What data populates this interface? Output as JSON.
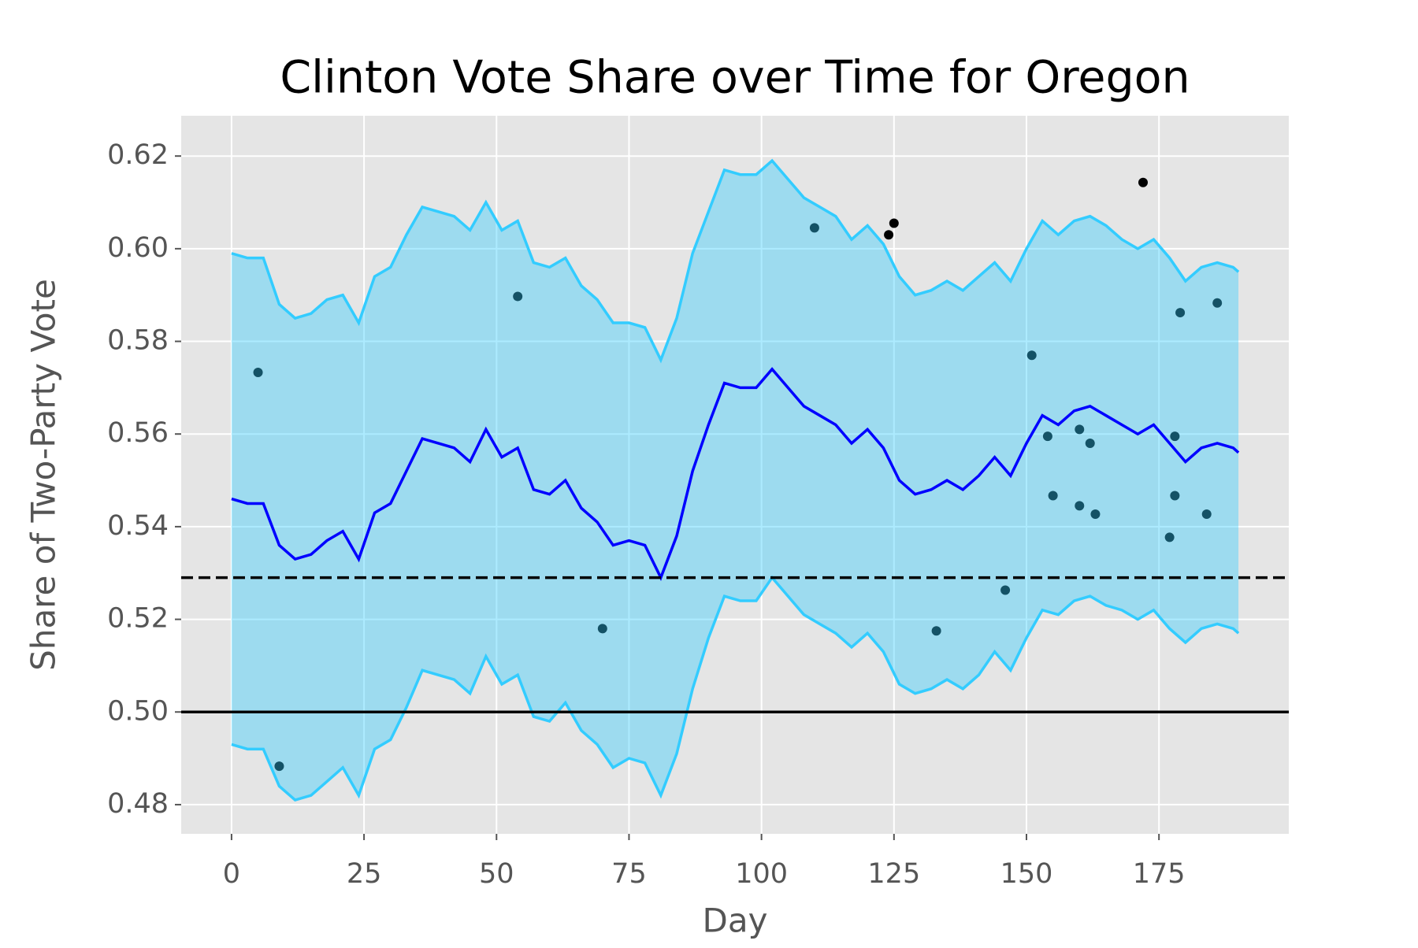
{
  "chart_data": {
    "type": "line-band",
    "title": "Clinton Vote Share over Time for Oregon",
    "x_label": "Day",
    "y_label": "Share of Two-Party Vote",
    "xlim": [
      -9.5,
      199.5
    ],
    "ylim": [
      0.4737,
      0.6287
    ],
    "xticks": [
      0,
      25,
      50,
      75,
      100,
      125,
      150,
      175
    ],
    "yticks": [
      0.48,
      {
        "value": 0.5,
        "label": "0.50"
      },
      0.52,
      0.54,
      0.56,
      0.58,
      {
        "value": 0.6,
        "label": "0.60"
      },
      0.62
    ],
    "grid": true,
    "x": [
      0,
      3,
      6,
      9,
      12,
      15,
      18,
      21,
      24,
      27,
      30,
      33,
      36,
      39,
      42,
      45,
      48,
      51,
      54,
      57,
      60,
      63,
      66,
      69,
      72,
      75,
      78,
      81,
      84,
      87,
      90,
      93,
      96,
      99,
      102,
      105,
      108,
      111,
      114,
      117,
      120,
      123,
      126,
      129,
      132,
      135,
      138,
      141,
      144,
      147,
      150,
      153,
      156,
      159,
      162,
      165,
      168,
      171,
      174,
      177,
      180,
      183,
      186,
      189,
      190
    ],
    "line": {
      "color": "#0000ff",
      "values": [
        0.546,
        0.545,
        0.545,
        0.536,
        0.533,
        0.534,
        0.537,
        0.539,
        0.533,
        0.543,
        0.545,
        0.552,
        0.559,
        0.558,
        0.557,
        0.554,
        0.561,
        0.555,
        0.557,
        0.548,
        0.547,
        0.55,
        0.544,
        0.541,
        0.536,
        0.537,
        0.536,
        0.529,
        0.538,
        0.552,
        0.562,
        0.571,
        0.57,
        0.57,
        0.574,
        0.57,
        0.566,
        0.564,
        0.562,
        0.558,
        0.561,
        0.557,
        0.55,
        0.547,
        0.548,
        0.55,
        0.548,
        0.551,
        0.555,
        0.551,
        0.558,
        0.564,
        0.562,
        0.565,
        0.566,
        0.564,
        0.562,
        0.56,
        0.562,
        0.558,
        0.554,
        0.557,
        0.558,
        0.557,
        0.556
      ]
    },
    "band": {
      "color": "#33ccff",
      "upper": [
        0.599,
        0.598,
        0.598,
        0.588,
        0.585,
        0.586,
        0.589,
        0.59,
        0.584,
        0.594,
        0.596,
        0.603,
        0.609,
        0.608,
        0.607,
        0.604,
        0.61,
        0.604,
        0.606,
        0.597,
        0.596,
        0.598,
        0.592,
        0.589,
        0.584,
        0.584,
        0.583,
        0.576,
        0.585,
        0.599,
        0.608,
        0.617,
        0.616,
        0.616,
        0.619,
        0.615,
        0.611,
        0.609,
        0.607,
        0.602,
        0.605,
        0.601,
        0.594,
        0.59,
        0.591,
        0.593,
        0.591,
        0.594,
        0.597,
        0.593,
        0.6,
        0.606,
        0.603,
        0.606,
        0.607,
        0.605,
        0.602,
        0.6,
        0.602,
        0.598,
        0.593,
        0.596,
        0.597,
        0.596,
        0.595
      ],
      "lower": [
        0.493,
        0.492,
        0.492,
        0.484,
        0.481,
        0.482,
        0.485,
        0.488,
        0.482,
        0.492,
        0.494,
        0.501,
        0.509,
        0.508,
        0.507,
        0.504,
        0.512,
        0.506,
        0.508,
        0.499,
        0.498,
        0.502,
        0.496,
        0.493,
        0.488,
        0.49,
        0.489,
        0.482,
        0.491,
        0.505,
        0.516,
        0.525,
        0.524,
        0.524,
        0.529,
        0.525,
        0.521,
        0.519,
        0.517,
        0.514,
        0.517,
        0.513,
        0.506,
        0.504,
        0.505,
        0.507,
        0.505,
        0.508,
        0.513,
        0.509,
        0.516,
        0.522,
        0.521,
        0.524,
        0.525,
        0.523,
        0.522,
        0.52,
        0.522,
        0.518,
        0.515,
        0.518,
        0.519,
        0.518,
        0.517
      ]
    },
    "points": {
      "color": "#000000",
      "x": [
        5,
        9,
        54,
        70,
        110,
        124,
        125,
        133,
        146,
        151,
        154,
        155,
        160,
        160,
        162,
        163,
        172,
        177,
        178,
        178,
        179,
        184,
        186
      ],
      "y": [
        0.5733,
        0.4883,
        0.5897,
        0.518,
        0.6045,
        0.603,
        0.6055,
        0.5175,
        0.5263,
        0.577,
        0.5595,
        0.5467,
        0.561,
        0.5445,
        0.558,
        0.5427,
        0.6143,
        0.5377,
        0.5595,
        0.5467,
        0.5862,
        0.5427,
        0.5883
      ]
    },
    "hlines": [
      {
        "value": 0.5,
        "style": "solid",
        "color": "#000000"
      },
      {
        "value": 0.529,
        "style": "dashed",
        "color": "#000000"
      }
    ]
  }
}
